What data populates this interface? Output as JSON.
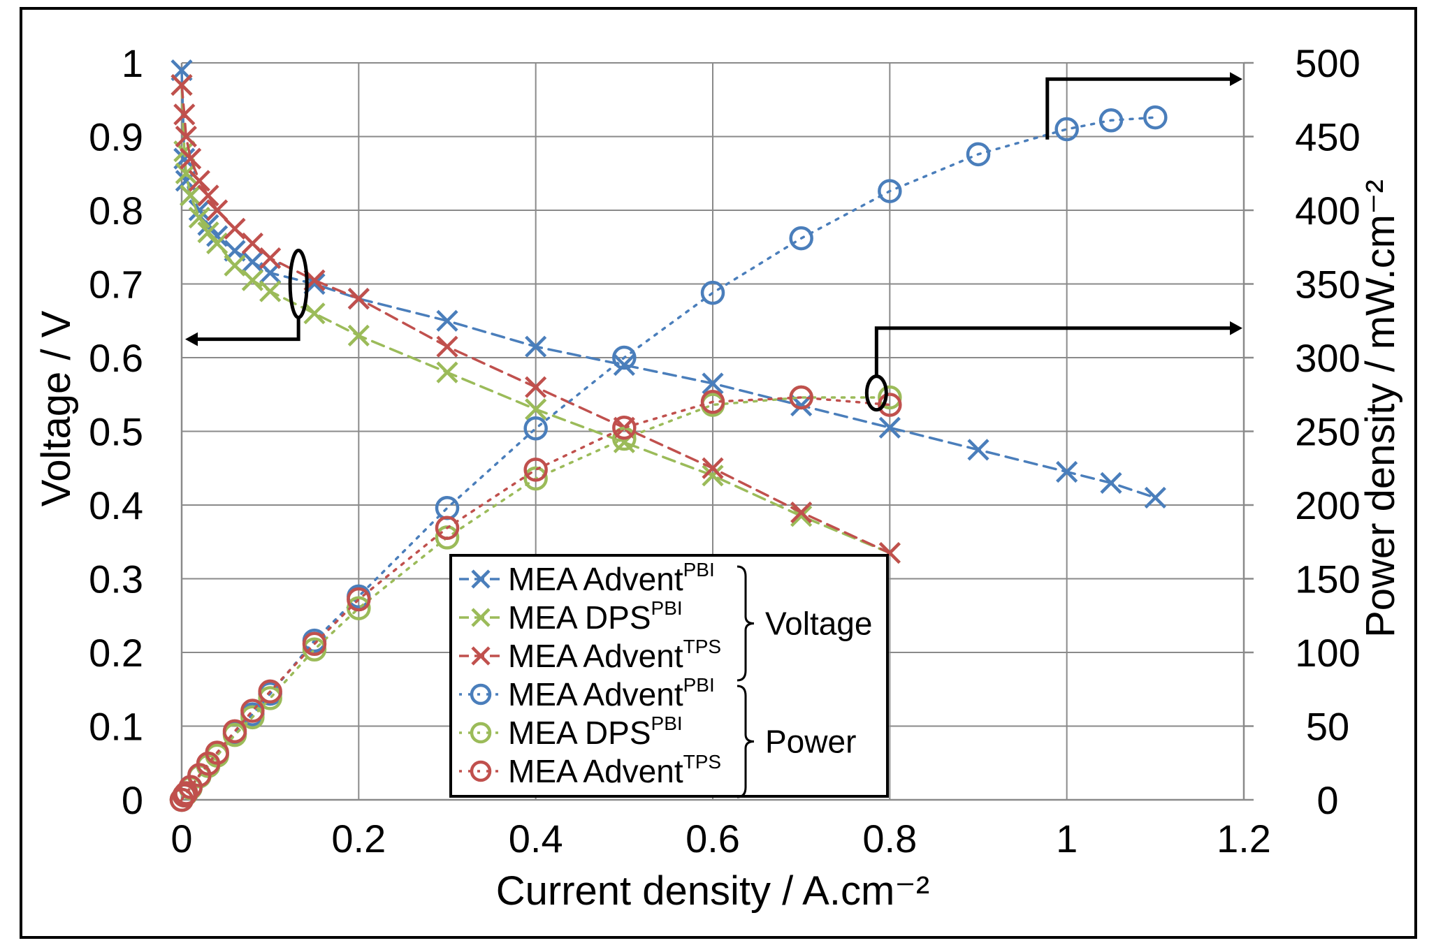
{
  "chart_data": {
    "type": "line",
    "xlabel": "Current density / A.cm⁻²",
    "ylabel": "Voltage / V",
    "y2label": "Power density /  mW.cm⁻²",
    "xlim": [
      0,
      1.2
    ],
    "ylim": [
      0,
      1
    ],
    "y2lim": [
      0,
      500
    ],
    "x_ticks": [
      "0",
      "0.2",
      "0.4",
      "0.6",
      "0.8",
      "1",
      "1.2"
    ],
    "y_ticks": [
      "0",
      "0.1",
      "0.2",
      "0.3",
      "0.4",
      "0.5",
      "0.6",
      "0.7",
      "0.8",
      "0.9",
      "1"
    ],
    "y2_ticks": [
      "0",
      "50",
      "100",
      "150",
      "200",
      "250",
      "300",
      "350",
      "400",
      "450",
      "500"
    ],
    "grid": true,
    "legend_position": "bottom-center",
    "series": [
      {
        "name": "MEA Advent",
        "sup": "PBI",
        "group": "Voltage",
        "axis": "left",
        "color": "#4a7ebb",
        "marker": "x",
        "dash": "dashed",
        "x": [
          0,
          0.003,
          0.005,
          0.01,
          0.02,
          0.03,
          0.04,
          0.06,
          0.08,
          0.1,
          0.15,
          0.2,
          0.3,
          0.4,
          0.5,
          0.6,
          0.7,
          0.8,
          0.9,
          1.0,
          1.05,
          1.1
        ],
        "y": [
          0.99,
          0.87,
          0.84,
          0.82,
          0.8,
          0.78,
          0.765,
          0.745,
          0.73,
          0.715,
          0.7,
          0.68,
          0.65,
          0.615,
          0.59,
          0.565,
          0.535,
          0.505,
          0.475,
          0.445,
          0.43,
          0.41
        ]
      },
      {
        "name": "MEA DPS",
        "sup": "PBI",
        "group": "Voltage",
        "axis": "left",
        "color": "#9bbb59",
        "marker": "x",
        "dash": "dashed",
        "x": [
          0,
          0.003,
          0.005,
          0.01,
          0.02,
          0.03,
          0.04,
          0.06,
          0.08,
          0.1,
          0.15,
          0.2,
          0.3,
          0.4,
          0.5,
          0.6,
          0.7,
          0.8
        ],
        "y": [
          0.97,
          0.88,
          0.85,
          0.82,
          0.79,
          0.77,
          0.755,
          0.725,
          0.705,
          0.69,
          0.66,
          0.63,
          0.58,
          0.53,
          0.485,
          0.44,
          0.385,
          0.335
        ]
      },
      {
        "name": "MEA Advent",
        "sup": "TPS",
        "group": "Voltage",
        "axis": "left",
        "color": "#c0504d",
        "marker": "x",
        "dash": "dashed",
        "x": [
          0,
          0.003,
          0.005,
          0.01,
          0.02,
          0.03,
          0.04,
          0.06,
          0.08,
          0.1,
          0.15,
          0.2,
          0.3,
          0.4,
          0.5,
          0.6,
          0.7,
          0.8
        ],
        "y": [
          0.97,
          0.93,
          0.9,
          0.87,
          0.84,
          0.82,
          0.8,
          0.775,
          0.755,
          0.735,
          0.705,
          0.68,
          0.615,
          0.56,
          0.505,
          0.45,
          0.39,
          0.335
        ]
      },
      {
        "name": "MEA Advent",
        "sup": "PBI",
        "group": "Power",
        "axis": "right",
        "color": "#4a7ebb",
        "marker": "o",
        "dash": "dotted",
        "x": [
          0,
          0.003,
          0.005,
          0.01,
          0.02,
          0.03,
          0.04,
          0.06,
          0.08,
          0.1,
          0.15,
          0.2,
          0.3,
          0.4,
          0.5,
          0.6,
          0.7,
          0.8,
          0.9,
          1.0,
          1.05,
          1.1
        ],
        "y": [
          0,
          3,
          4,
          8,
          16,
          23,
          31,
          45,
          58,
          72,
          108,
          138,
          198,
          252,
          300,
          344,
          381,
          413,
          438,
          455,
          461,
          463
        ]
      },
      {
        "name": "MEA DPS",
        "sup": "PBI",
        "group": "Power",
        "axis": "right",
        "color": "#9bbb59",
        "marker": "o",
        "dash": "dotted",
        "x": [
          0,
          0.003,
          0.005,
          0.01,
          0.02,
          0.03,
          0.04,
          0.06,
          0.08,
          0.1,
          0.15,
          0.2,
          0.3,
          0.4,
          0.5,
          0.6,
          0.7,
          0.8
        ],
        "y": [
          0,
          3,
          4,
          8,
          16,
          23,
          30,
          44,
          56,
          69,
          102,
          130,
          178,
          218,
          245,
          268,
          273,
          273
        ]
      },
      {
        "name": "MEA Advent",
        "sup": "TPS",
        "group": "Power",
        "axis": "right",
        "color": "#c0504d",
        "marker": "o",
        "dash": "dotted",
        "x": [
          0,
          0.003,
          0.005,
          0.01,
          0.02,
          0.03,
          0.04,
          0.06,
          0.08,
          0.1,
          0.15,
          0.2,
          0.3,
          0.4,
          0.5,
          0.6,
          0.7,
          0.8
        ],
        "y": [
          0,
          3,
          4.5,
          8.7,
          16.8,
          24.6,
          32,
          46.5,
          60.4,
          73.5,
          105.8,
          136,
          184.5,
          224,
          252.5,
          270,
          273,
          268
        ]
      }
    ],
    "legend_groups": [
      {
        "label": "Voltage"
      },
      {
        "label": "Power"
      }
    ]
  }
}
